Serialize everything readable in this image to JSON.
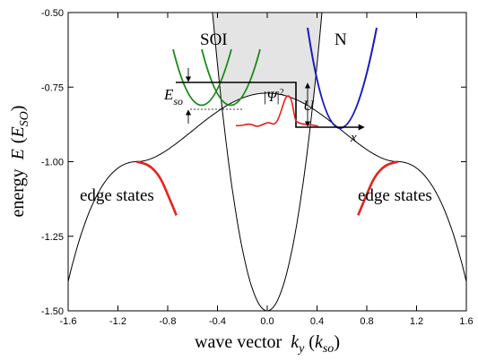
{
  "chart_data": {
    "type": "line",
    "xlabel": {
      "prefix": "wave vector",
      "var": "k",
      "sub": "y",
      "unit": "k",
      "unit_sub": "so"
    },
    "ylabel": {
      "prefix": "energy",
      "var": "E",
      "unit": "E",
      "unit_sub": "SO"
    },
    "xlim": [
      -1.6,
      1.6
    ],
    "ylim": [
      -1.5,
      -0.5
    ],
    "xticks": [
      -1.6,
      -1.2,
      -0.8,
      -0.4,
      0.0,
      0.4,
      0.8,
      1.2,
      1.6
    ],
    "xtick_labels": [
      "-1.6",
      "-1.2",
      "-0.8",
      "-0.4",
      "0.0",
      "0.4",
      "0.8",
      "1.2",
      "1.6"
    ],
    "yticks": [
      -0.5,
      -0.75,
      -1.0,
      -1.25,
      -1.5
    ],
    "ytick_labels": [
      "-0.50",
      "-0.75",
      "-1.00",
      "-1.25",
      "-1.50"
    ],
    "bulk_continuum": {
      "fill": "#e4e4e4",
      "edge": "#000000",
      "inner_parabola": {
        "vertex": [
          0.0,
          -1.5
        ],
        "k_at_top": 0.44
      },
      "outer_band": {
        "min_k": 1.05,
        "min_E": -1.0
      }
    },
    "edge_states": {
      "color": "#e8211b",
      "label": "edge states",
      "left": [
        [
          -1.05,
          -1.0
        ],
        [
          -0.95,
          -1.01
        ],
        [
          -0.86,
          -1.05
        ],
        [
          -0.79,
          -1.12
        ],
        [
          -0.73,
          -1.18
        ]
      ],
      "right": [
        [
          0.73,
          -1.18
        ],
        [
          0.79,
          -1.12
        ],
        [
          0.86,
          -1.05
        ],
        [
          0.95,
          -1.01
        ],
        [
          1.05,
          -1.0
        ]
      ]
    },
    "inset": {
      "soi_label": "SOI",
      "n_label": "N",
      "eso_label": {
        "var": "E",
        "sub": "so"
      },
      "u_label": "U",
      "x_label": "x",
      "psi_label": {
        "var": "Ψ",
        "sup": "2"
      },
      "soi_color": "#1a8a1a",
      "n_color": "#1818c8",
      "wave_color": "#e8211b",
      "step_color": "#000000"
    }
  }
}
